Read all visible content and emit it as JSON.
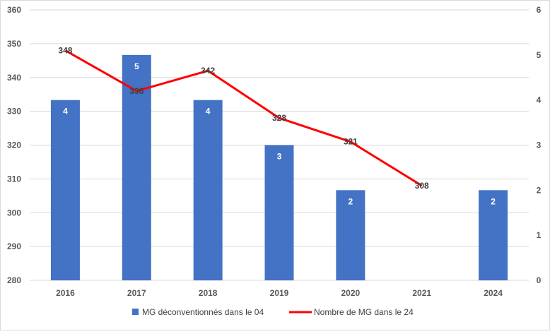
{
  "chart_data": {
    "type": "bar",
    "categories": [
      "2016",
      "2017",
      "2018",
      "2019",
      "2020",
      "2021",
      "2024"
    ],
    "series": [
      {
        "name": "MG déconventionnés dans le 04",
        "type": "bar",
        "axis": "right",
        "values": [
          4,
          5,
          4,
          3,
          2,
          null,
          2
        ],
        "color": "#4472c4"
      },
      {
        "name": "Nombre de MG dans le 24",
        "type": "line",
        "axis": "left",
        "values": [
          348,
          336,
          342,
          328,
          321,
          308,
          null
        ],
        "color": "#ff0000"
      }
    ],
    "y_left": {
      "min": 280,
      "max": 360,
      "ticks": [
        "280",
        "290",
        "300",
        "310",
        "320",
        "330",
        "340",
        "350",
        "360"
      ]
    },
    "y_right": {
      "min": 0,
      "max": 6,
      "ticks": [
        "0",
        "1",
        "2",
        "3",
        "4",
        "5",
        "6"
      ]
    },
    "grid": true,
    "legend": "bottom"
  }
}
